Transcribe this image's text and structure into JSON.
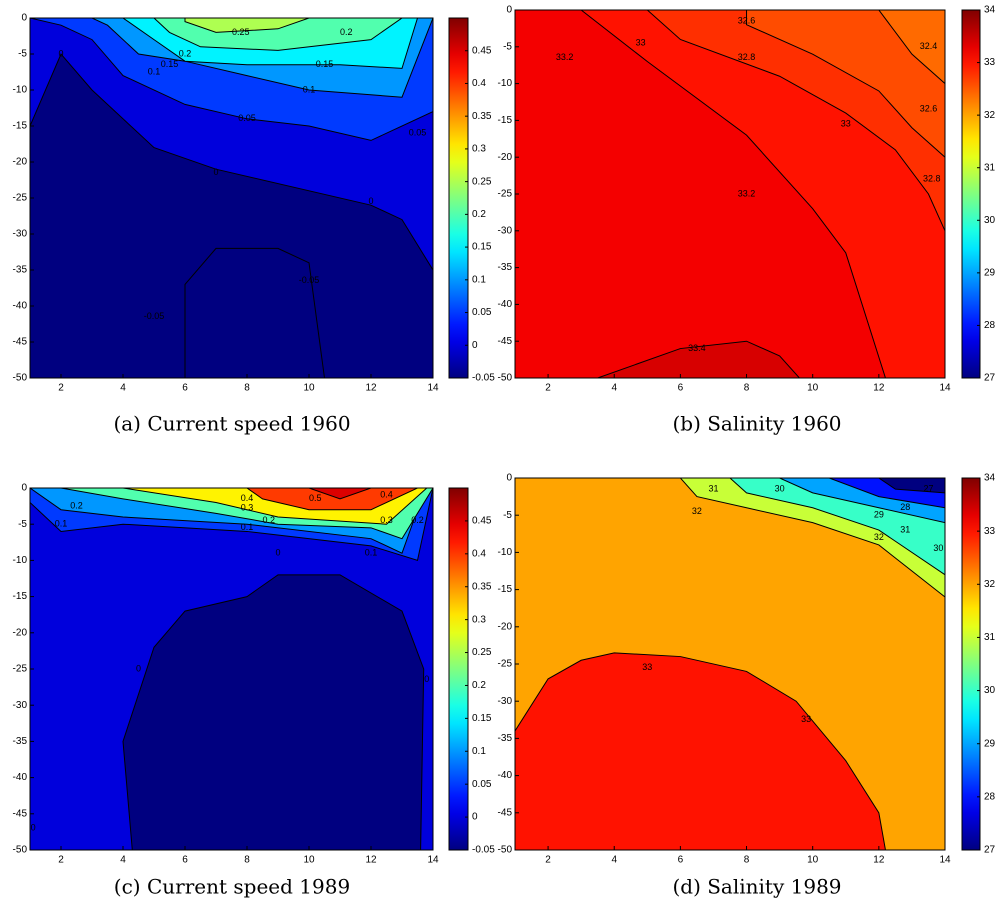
{
  "chart_data": [
    {
      "type": "contour",
      "caption": "(a)  Current speed 1960",
      "xlim": [
        1,
        14
      ],
      "ylim": [
        -50,
        0
      ],
      "xticks": [
        2,
        4,
        6,
        8,
        10,
        12,
        14
      ],
      "yticks": [
        0,
        -5,
        -10,
        -15,
        -20,
        -25,
        -30,
        -35,
        -40,
        -45,
        -50
      ],
      "clim": [
        -0.05,
        0.5
      ],
      "cticks": [
        -0.05,
        0,
        0.05,
        0.1,
        0.15,
        0.2,
        0.25,
        0.3,
        0.35,
        0.4,
        0.45
      ],
      "background": -0.05,
      "regions": [
        {
          "level": 0,
          "points": [
            [
              1,
              0
            ],
            [
              14,
              0
            ],
            [
              14,
              -35
            ],
            [
              13,
              -28
            ],
            [
              12,
              -26
            ],
            [
              7,
              -21
            ],
            [
              5,
              -18
            ],
            [
              3,
              -10
            ],
            [
              2,
              -5
            ],
            [
              1,
              -15
            ]
          ]
        },
        {
          "level": 0.05,
          "points": [
            [
              1,
              0
            ],
            [
              14,
              0
            ],
            [
              14,
              -13
            ],
            [
              12,
              -17
            ],
            [
              10,
              -15
            ],
            [
              8,
              -14
            ],
            [
              6,
              -12
            ],
            [
              4,
              -8
            ],
            [
              3,
              -3
            ],
            [
              2,
              -1
            ]
          ]
        },
        {
          "level": 0.1,
          "points": [
            [
              3,
              0
            ],
            [
              14,
              0
            ],
            [
              13,
              -11
            ],
            [
              10,
              -10
            ],
            [
              8,
              -8
            ],
            [
              6,
              -6
            ],
            [
              4.5,
              -5
            ],
            [
              3.5,
              -1
            ]
          ]
        },
        {
          "level": 0.15,
          "points": [
            [
              4,
              0
            ],
            [
              13.5,
              0
            ],
            [
              13,
              -7
            ],
            [
              11,
              -6.5
            ],
            [
              8,
              -6.5
            ],
            [
              6,
              -6
            ],
            [
              5,
              -3
            ]
          ]
        },
        {
          "level": 0.2,
          "points": [
            [
              5,
              0
            ],
            [
              13,
              0
            ],
            [
              12,
              -3
            ],
            [
              9,
              -4.5
            ],
            [
              6.5,
              -4
            ],
            [
              5.5,
              -2
            ]
          ]
        },
        {
          "level": 0.25,
          "points": [
            [
              6,
              0
            ],
            [
              10,
              0
            ],
            [
              9,
              -1.5
            ],
            [
              7,
              -2
            ],
            [
              6,
              -0.5
            ]
          ]
        },
        {
          "level": -0.05,
          "points": [
            [
              6,
              -50
            ],
            [
              6,
              -37
            ],
            [
              7,
              -32
            ],
            [
              9,
              -32
            ],
            [
              10,
              -34
            ],
            [
              10.5,
              -50
            ]
          ]
        }
      ],
      "labels": [
        {
          "level": 0.25,
          "x": 7.8,
          "y": -2
        },
        {
          "level": 0.2,
          "x": 6,
          "y": -5
        },
        {
          "level": 0.15,
          "x": 5.5,
          "y": -6.5
        },
        {
          "level": 0.1,
          "x": 5,
          "y": -7.5
        },
        {
          "level": 0.2,
          "x": 11.2,
          "y": -2
        },
        {
          "level": 0.15,
          "x": 10.5,
          "y": -6.5
        },
        {
          "level": 0.1,
          "x": 10,
          "y": -10
        },
        {
          "level": 0.05,
          "x": 8,
          "y": -14
        },
        {
          "level": 0.05,
          "x": 13.5,
          "y": -16
        },
        {
          "level": 0,
          "x": 2,
          "y": -5
        },
        {
          "level": 0,
          "x": 7,
          "y": -21.5
        },
        {
          "level": 0,
          "x": 12,
          "y": -25.5
        },
        {
          "level": -0.05,
          "x": 10,
          "y": -36.5
        },
        {
          "level": -0.05,
          "x": 5,
          "y": -41.5
        }
      ]
    },
    {
      "type": "contour",
      "caption": "(b)  Salinity 1960",
      "xlim": [
        1,
        14
      ],
      "ylim": [
        -50,
        0
      ],
      "xticks": [
        2,
        4,
        6,
        8,
        10,
        12,
        14
      ],
      "yticks": [
        0,
        -5,
        -10,
        -15,
        -20,
        -25,
        -30,
        -35,
        -40,
        -45,
        -50
      ],
      "clim": [
        27,
        34
      ],
      "cticks": [
        27,
        28,
        29,
        30,
        31,
        32,
        33,
        34
      ],
      "background": 33,
      "regions": [
        {
          "level": 33.2,
          "points": [
            [
              1,
              0
            ],
            [
              3,
              0
            ],
            [
              5,
              -7
            ],
            [
              8,
              -17
            ],
            [
              10,
              -27
            ],
            [
              11,
              -33
            ],
            [
              12.2,
              -50
            ],
            [
              1,
              -50
            ]
          ]
        },
        {
          "level": 33.4,
          "points": [
            [
              3.5,
              -50
            ],
            [
              6,
              -46
            ],
            [
              8,
              -45
            ],
            [
              9,
              -47
            ],
            [
              9.6,
              -50
            ]
          ]
        },
        {
          "level": 32.8,
          "points": [
            [
              5,
              0
            ],
            [
              14,
              0
            ],
            [
              14,
              -30
            ],
            [
              13.5,
              -25
            ],
            [
              12.5,
              -19
            ],
            [
              11,
              -14
            ],
            [
              9,
              -9
            ],
            [
              6,
              -4
            ]
          ]
        },
        {
          "level": 32.6,
          "points": [
            [
              8,
              0
            ],
            [
              14,
              0
            ],
            [
              14,
              -20
            ],
            [
              13,
              -16
            ],
            [
              12,
              -11
            ],
            [
              10,
              -6
            ],
            [
              8,
              -2
            ]
          ]
        },
        {
          "level": 32.4,
          "points": [
            [
              12,
              0
            ],
            [
              14,
              0
            ],
            [
              14,
              -10
            ],
            [
              13,
              -6
            ]
          ]
        }
      ],
      "labels": [
        {
          "level": 32.6,
          "x": 8,
          "y": -1.5
        },
        {
          "level": 33,
          "x": 4.8,
          "y": -4.5
        },
        {
          "level": 33.2,
          "x": 2.5,
          "y": -6.5
        },
        {
          "level": 32.8,
          "x": 8,
          "y": -6.5
        },
        {
          "level": 32.4,
          "x": 13.5,
          "y": -5
        },
        {
          "level": 32.6,
          "x": 13.5,
          "y": -13.5
        },
        {
          "level": 33,
          "x": 11,
          "y": -15.5
        },
        {
          "level": 32.8,
          "x": 13.6,
          "y": -23
        },
        {
          "level": 33.2,
          "x": 8,
          "y": -25
        },
        {
          "level": 33.4,
          "x": 6.5,
          "y": -46
        }
      ]
    },
    {
      "type": "contour",
      "caption": "(c)  Current speed 1989",
      "xlim": [
        1,
        14
      ],
      "ylim": [
        -50,
        0
      ],
      "xticks": [
        2,
        4,
        6,
        8,
        10,
        12,
        14
      ],
      "yticks": [
        0,
        -5,
        -10,
        -15,
        -20,
        -25,
        -30,
        -35,
        -40,
        -45,
        -50
      ],
      "clim": [
        -0.05,
        0.5
      ],
      "cticks": [
        -0.05,
        0,
        0.05,
        0.1,
        0.15,
        0.2,
        0.25,
        0.3,
        0.35,
        0.4,
        0.45
      ],
      "background": 0,
      "regions": [
        {
          "level": -0.05,
          "points": [
            [
              4.3,
              -50
            ],
            [
              4,
              -35
            ],
            [
              5,
              -22
            ],
            [
              6,
              -17
            ],
            [
              8,
              -15
            ],
            [
              9,
              -12
            ],
            [
              11,
              -12
            ],
            [
              13,
              -17
            ],
            [
              13.7,
              -25
            ],
            [
              13.6,
              -50
            ]
          ]
        },
        {
          "level": 0.05,
          "points": [
            [
              1,
              0
            ],
            [
              14,
              0
            ],
            [
              13.5,
              -10
            ],
            [
              12,
              -8
            ],
            [
              8,
              -6
            ],
            [
              4,
              -5
            ],
            [
              2,
              -6
            ],
            [
              1,
              -2
            ]
          ]
        },
        {
          "level": 0.1,
          "points": [
            [
              1,
              0
            ],
            [
              14,
              0
            ],
            [
              13.5,
              -3
            ],
            [
              13,
              -9
            ],
            [
              12,
              -7
            ],
            [
              8,
              -5
            ],
            [
              4,
              -4
            ],
            [
              2,
              -3
            ]
          ]
        },
        {
          "level": 0.2,
          "points": [
            [
              1,
              0
            ],
            [
              14,
              0
            ],
            [
              13,
              -7
            ],
            [
              12,
              -5.5
            ],
            [
              9,
              -5
            ],
            [
              7,
              -3.5
            ],
            [
              4,
              -1.5
            ],
            [
              2,
              0
            ]
          ]
        },
        {
          "level": 0.3,
          "points": [
            [
              4,
              0
            ],
            [
              13.8,
              0
            ],
            [
              12.5,
              -5
            ],
            [
              9,
              -4
            ],
            [
              7,
              -2
            ]
          ]
        },
        {
          "level": 0.4,
          "points": [
            [
              8,
              0
            ],
            [
              13.5,
              0
            ],
            [
              12,
              -3
            ],
            [
              10,
              -3
            ],
            [
              8.5,
              -1.5
            ]
          ]
        },
        {
          "level": 0.45,
          "points": [
            [
              10,
              0
            ],
            [
              12,
              0
            ],
            [
              11,
              -1.5
            ]
          ]
        }
      ],
      "labels": [
        {
          "level": 0.2,
          "x": 2.5,
          "y": -2.5
        },
        {
          "level": 0.1,
          "x": 2,
          "y": -5
        },
        {
          "level": 0.4,
          "x": 8,
          "y": -1.5
        },
        {
          "level": 0.3,
          "x": 8,
          "y": -2.8
        },
        {
          "level": 0.2,
          "x": 8.7,
          "y": -4.5
        },
        {
          "level": 0.1,
          "x": 8,
          "y": -5.5
        },
        {
          "level": 0.5,
          "x": 10.2,
          "y": -1.5
        },
        {
          "level": 0.4,
          "x": 12.5,
          "y": -1
        },
        {
          "level": 0.3,
          "x": 12.5,
          "y": -4.5
        },
        {
          "level": 0.2,
          "x": 13.5,
          "y": -4.5
        },
        {
          "level": 0.1,
          "x": 12,
          "y": -9
        },
        {
          "level": 0,
          "x": 9,
          "y": -9
        },
        {
          "level": 0,
          "x": 4.5,
          "y": -25
        },
        {
          "level": 0,
          "x": 13.8,
          "y": -26.5
        },
        {
          "level": 0,
          "x": 1.1,
          "y": -47
        }
      ]
    },
    {
      "type": "contour",
      "caption": "(d)  Salinity 1989",
      "xlim": [
        1,
        14
      ],
      "ylim": [
        -50,
        0
      ],
      "xticks": [
        2,
        4,
        6,
        8,
        10,
        12,
        14
      ],
      "yticks": [
        0,
        -5,
        -10,
        -15,
        -20,
        -25,
        -30,
        -35,
        -40,
        -45,
        -50
      ],
      "clim": [
        27,
        34
      ],
      "cticks": [
        27,
        28,
        29,
        30,
        31,
        32,
        33,
        34
      ],
      "background": 32,
      "regions": [
        {
          "level": 33,
          "points": [
            [
              1,
              -50
            ],
            [
              1,
              -34
            ],
            [
              2,
              -27
            ],
            [
              3,
              -24.5
            ],
            [
              4,
              -23.5
            ],
            [
              6,
              -24
            ],
            [
              8,
              -26
            ],
            [
              9.5,
              -30
            ],
            [
              11,
              -38
            ],
            [
              12,
              -45
            ],
            [
              12.2,
              -50
            ]
          ]
        },
        {
          "level": 31,
          "points": [
            [
              6,
              0
            ],
            [
              14,
              0
            ],
            [
              14,
              -16
            ],
            [
              12,
              -9
            ],
            [
              10,
              -6
            ],
            [
              8,
              -4
            ],
            [
              6.5,
              -2.5
            ]
          ]
        },
        {
          "level": 30,
          "points": [
            [
              7.5,
              0
            ],
            [
              14,
              0
            ],
            [
              14,
              -13
            ],
            [
              12,
              -7
            ],
            [
              10,
              -4
            ],
            [
              8,
              -2
            ]
          ]
        },
        {
          "level": 29,
          "points": [
            [
              9,
              0
            ],
            [
              14,
              0
            ],
            [
              14,
              -6
            ],
            [
              12,
              -4
            ],
            [
              10,
              -2
            ]
          ]
        },
        {
          "level": 28,
          "points": [
            [
              10.5,
              0
            ],
            [
              14,
              0
            ],
            [
              14,
              -4
            ],
            [
              12,
              -2.5
            ]
          ]
        },
        {
          "level": 27,
          "points": [
            [
              12,
              0
            ],
            [
              14,
              0
            ],
            [
              14,
              -2
            ],
            [
              12.5,
              -1.5
            ]
          ]
        }
      ],
      "labels": [
        {
          "level": 31,
          "x": 7,
          "y": -1.5
        },
        {
          "level": 30,
          "x": 9,
          "y": -1.5
        },
        {
          "level": 32,
          "x": 6.5,
          "y": -4.5
        },
        {
          "level": 29,
          "x": 12,
          "y": -5
        },
        {
          "level": 28,
          "x": 12.8,
          "y": -4
        },
        {
          "level": 27,
          "x": 13.5,
          "y": -1.5
        },
        {
          "level": 32,
          "x": 12,
          "y": -8
        },
        {
          "level": 31,
          "x": 12.8,
          "y": -7
        },
        {
          "level": 30,
          "x": 13.8,
          "y": -9.5
        },
        {
          "level": 33,
          "x": 5,
          "y": -25.5
        },
        {
          "level": 33,
          "x": 9.8,
          "y": -32.5
        }
      ]
    }
  ]
}
